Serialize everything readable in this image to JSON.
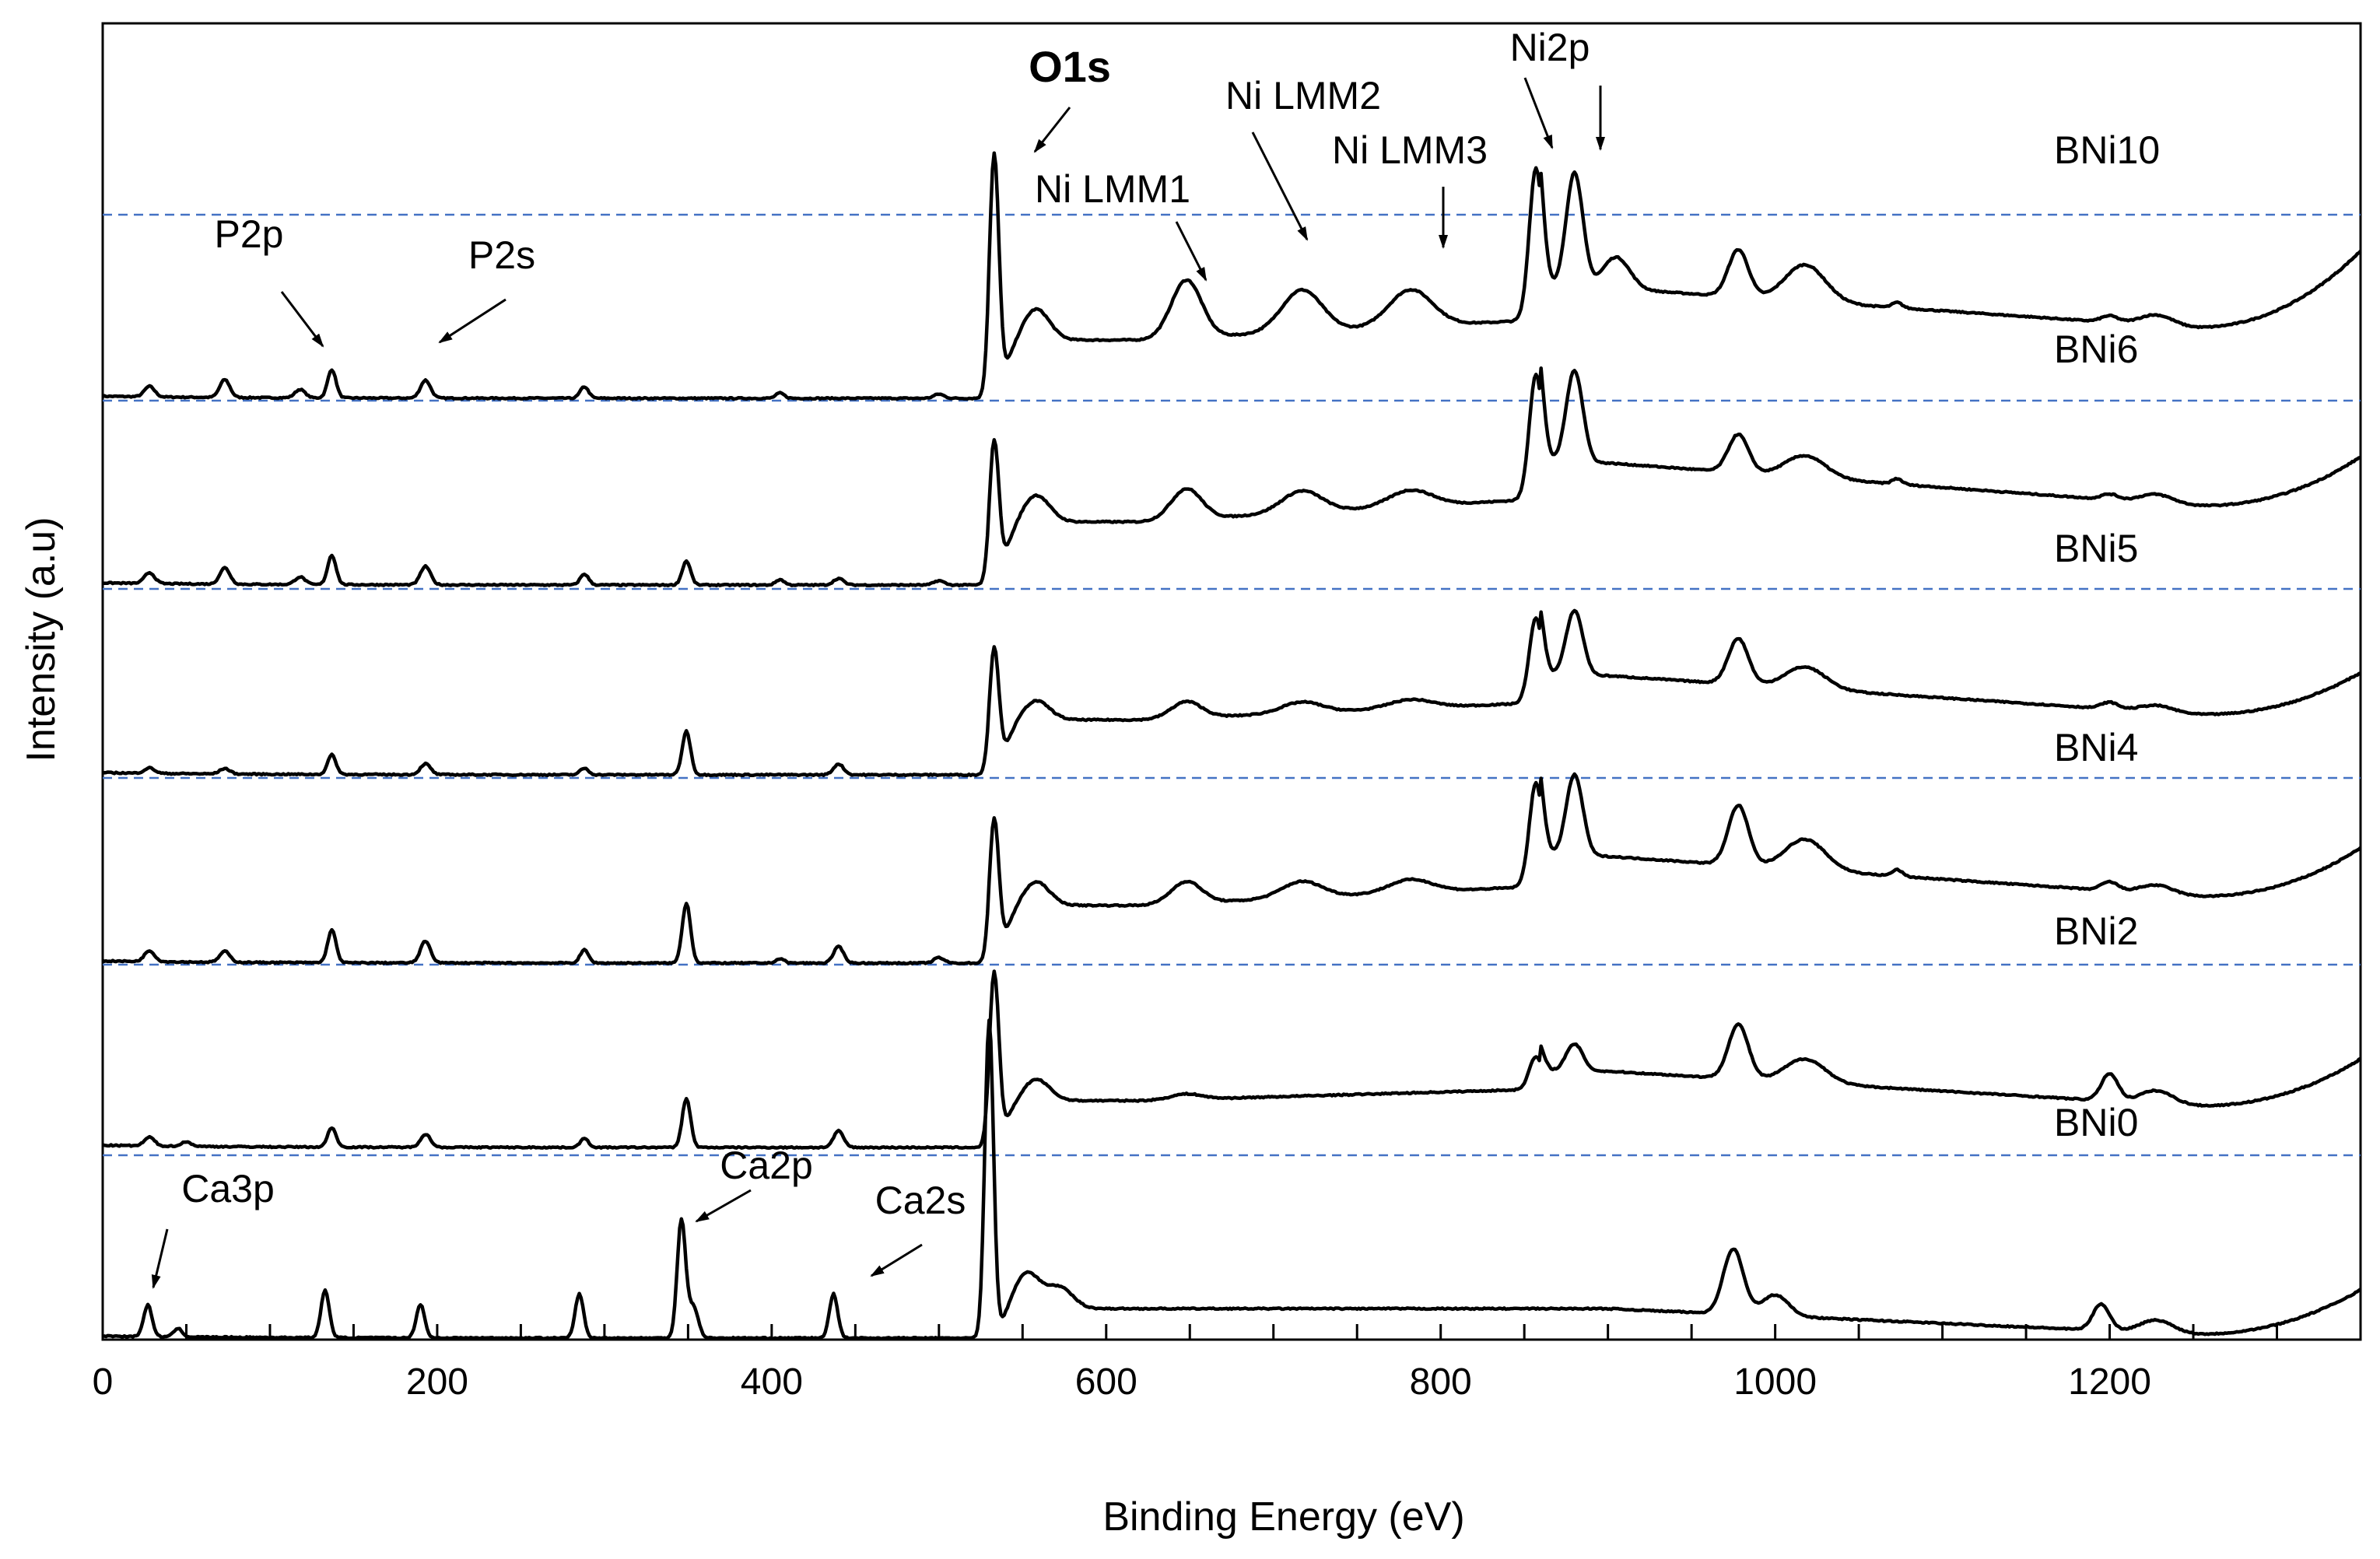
{
  "chart_data": {
    "type": "line",
    "title": "",
    "xlabel": "Binding Energy (eV)",
    "ylabel": "Intensity (a.u)",
    "xlim": [
      0,
      1350
    ],
    "x_ticks": [
      0,
      200,
      400,
      600,
      800,
      1000,
      1200
    ],
    "x_tick_labels": [
      "0",
      "200",
      "400",
      "600",
      "800",
      "1000",
      "1200"
    ],
    "x_minor_step": 50,
    "grid": false,
    "legend": "none",
    "colors": {
      "spectrum": "#000000",
      "baseline": "#4472c4"
    },
    "series": [
      {
        "name": "BNi10",
        "label": "BNi10",
        "baseline": 0.0,
        "start": 0.0,
        "end": 1.53,
        "ni_level": 0.55,
        "peaks": [
          {
            "x": 28,
            "h": 0.1,
            "w": 3
          },
          {
            "x": 73,
            "h": 0.17,
            "w": 3
          },
          {
            "x": 118,
            "h": 0.08,
            "w": 3
          },
          {
            "x": 137,
            "h": 0.27,
            "w": 2.5
          },
          {
            "x": 193,
            "h": 0.17,
            "w": 3
          },
          {
            "x": 288,
            "h": 0.11,
            "w": 2.5
          },
          {
            "x": 405,
            "h": 0.05,
            "w": 2.5
          },
          {
            "x": 500,
            "h": 0.04,
            "w": 3
          },
          {
            "x": 533,
            "h": 2.25,
            "w": 2.8
          },
          {
            "x": 558,
            "h": 0.3,
            "w": 8
          },
          {
            "x": 648,
            "h": 0.55,
            "w": 9
          },
          {
            "x": 717,
            "h": 0.4,
            "w": 12
          },
          {
            "x": 782,
            "h": 0.35,
            "w": 13
          },
          {
            "x": 857,
            "h": 1.45,
            "w": 4
          },
          {
            "x": 880,
            "h": 1.1,
            "w": 5
          },
          {
            "x": 905,
            "h": 0.3,
            "w": 8
          },
          {
            "x": 978,
            "h": 0.45,
            "w": 6
          },
          {
            "x": 1018,
            "h": 0.35,
            "w": 12
          },
          {
            "x": 1073,
            "h": 0.05,
            "w": 3
          },
          {
            "x": 1200,
            "h": 0.06,
            "w": 5
          },
          {
            "x": 1228,
            "h": 0.1,
            "w": 10
          }
        ]
      },
      {
        "name": "BNi6",
        "label": "BNi6",
        "baseline": 0.0,
        "start": 0.0,
        "end": 1.02,
        "ni_level": 0.6,
        "peaks": [
          {
            "x": 28,
            "h": 0.1,
            "w": 3
          },
          {
            "x": 73,
            "h": 0.15,
            "w": 3
          },
          {
            "x": 118,
            "h": 0.07,
            "w": 3
          },
          {
            "x": 137,
            "h": 0.27,
            "w": 2.5
          },
          {
            "x": 193,
            "h": 0.17,
            "w": 3
          },
          {
            "x": 288,
            "h": 0.1,
            "w": 2.5
          },
          {
            "x": 349,
            "h": 0.22,
            "w": 2.5
          },
          {
            "x": 405,
            "h": 0.05,
            "w": 2.5
          },
          {
            "x": 440,
            "h": 0.06,
            "w": 3
          },
          {
            "x": 500,
            "h": 0.04,
            "w": 3
          },
          {
            "x": 533,
            "h": 1.25,
            "w": 2.8
          },
          {
            "x": 558,
            "h": 0.25,
            "w": 8
          },
          {
            "x": 648,
            "h": 0.28,
            "w": 9
          },
          {
            "x": 717,
            "h": 0.2,
            "w": 12
          },
          {
            "x": 782,
            "h": 0.15,
            "w": 13
          },
          {
            "x": 857,
            "h": 1.15,
            "w": 4
          },
          {
            "x": 880,
            "h": 0.85,
            "w": 5
          },
          {
            "x": 978,
            "h": 0.35,
            "w": 6
          },
          {
            "x": 1018,
            "h": 0.2,
            "w": 12
          },
          {
            "x": 1073,
            "h": 0.05,
            "w": 3
          },
          {
            "x": 1200,
            "h": 0.05,
            "w": 5
          },
          {
            "x": 1228,
            "h": 0.08,
            "w": 10
          }
        ]
      },
      {
        "name": "BNi5",
        "label": "BNi5",
        "baseline": 0.0,
        "start": 0.0,
        "end": 0.88,
        "ni_level": 0.45,
        "peaks": [
          {
            "x": 28,
            "h": 0.05,
            "w": 3
          },
          {
            "x": 73,
            "h": 0.05,
            "w": 3
          },
          {
            "x": 137,
            "h": 0.18,
            "w": 2.5
          },
          {
            "x": 193,
            "h": 0.1,
            "w": 3
          },
          {
            "x": 288,
            "h": 0.06,
            "w": 2.5
          },
          {
            "x": 349,
            "h": 0.4,
            "w": 2.5
          },
          {
            "x": 440,
            "h": 0.1,
            "w": 3
          },
          {
            "x": 533,
            "h": 1.1,
            "w": 2.8
          },
          {
            "x": 558,
            "h": 0.18,
            "w": 8
          },
          {
            "x": 648,
            "h": 0.15,
            "w": 9
          },
          {
            "x": 717,
            "h": 0.1,
            "w": 12
          },
          {
            "x": 782,
            "h": 0.08,
            "w": 13
          },
          {
            "x": 857,
            "h": 0.78,
            "w": 4
          },
          {
            "x": 880,
            "h": 0.6,
            "w": 5
          },
          {
            "x": 978,
            "h": 0.42,
            "w": 6
          },
          {
            "x": 1018,
            "h": 0.2,
            "w": 12
          },
          {
            "x": 1200,
            "h": 0.06,
            "w": 5
          },
          {
            "x": 1228,
            "h": 0.06,
            "w": 10
          }
        ]
      },
      {
        "name": "BNi4",
        "label": "BNi4",
        "baseline": 0.0,
        "start": 0.0,
        "end": 1.0,
        "ni_level": 0.5,
        "peaks": [
          {
            "x": 28,
            "h": 0.1,
            "w": 3
          },
          {
            "x": 73,
            "h": 0.1,
            "w": 3
          },
          {
            "x": 137,
            "h": 0.3,
            "w": 2.5
          },
          {
            "x": 193,
            "h": 0.2,
            "w": 3
          },
          {
            "x": 288,
            "h": 0.12,
            "w": 2.5
          },
          {
            "x": 349,
            "h": 0.55,
            "w": 2.5
          },
          {
            "x": 405,
            "h": 0.04,
            "w": 2.5
          },
          {
            "x": 440,
            "h": 0.15,
            "w": 3
          },
          {
            "x": 500,
            "h": 0.05,
            "w": 3
          },
          {
            "x": 533,
            "h": 1.25,
            "w": 2.8
          },
          {
            "x": 558,
            "h": 0.22,
            "w": 8
          },
          {
            "x": 648,
            "h": 0.2,
            "w": 9
          },
          {
            "x": 717,
            "h": 0.15,
            "w": 12
          },
          {
            "x": 782,
            "h": 0.12,
            "w": 13
          },
          {
            "x": 857,
            "h": 0.95,
            "w": 4
          },
          {
            "x": 880,
            "h": 0.75,
            "w": 5
          },
          {
            "x": 978,
            "h": 0.55,
            "w": 6
          },
          {
            "x": 1018,
            "h": 0.28,
            "w": 12
          },
          {
            "x": 1073,
            "h": 0.06,
            "w": 3
          },
          {
            "x": 1200,
            "h": 0.08,
            "w": 5
          },
          {
            "x": 1228,
            "h": 0.08,
            "w": 10
          }
        ]
      },
      {
        "name": "BNi2",
        "label": "BNi2",
        "baseline": 0.0,
        "start": 0.0,
        "end": 0.95,
        "ni_level": 0.3,
        "peaks": [
          {
            "x": 28,
            "h": 0.08,
            "w": 3
          },
          {
            "x": 50,
            "h": 0.04,
            "w": 3
          },
          {
            "x": 137,
            "h": 0.18,
            "w": 2.5
          },
          {
            "x": 193,
            "h": 0.12,
            "w": 3
          },
          {
            "x": 288,
            "h": 0.08,
            "w": 2.5
          },
          {
            "x": 349,
            "h": 0.45,
            "w": 2.5
          },
          {
            "x": 440,
            "h": 0.15,
            "w": 3
          },
          {
            "x": 533,
            "h": 1.55,
            "w": 2.8
          },
          {
            "x": 558,
            "h": 0.2,
            "w": 8
          },
          {
            "x": 648,
            "h": 0.05,
            "w": 9
          },
          {
            "x": 857,
            "h": 0.3,
            "w": 4
          },
          {
            "x": 880,
            "h": 0.25,
            "w": 5
          },
          {
            "x": 978,
            "h": 0.5,
            "w": 6
          },
          {
            "x": 1018,
            "h": 0.22,
            "w": 12
          },
          {
            "x": 1200,
            "h": 0.25,
            "w": 5
          },
          {
            "x": 1228,
            "h": 0.12,
            "w": 10
          }
        ]
      },
      {
        "name": "BNi0",
        "label": "BNi0",
        "baseline": 0.0,
        "start": 0.0,
        "end": 0.9,
        "ni_level": 0.0,
        "peaks": [
          {
            "x": 27,
            "h": 0.3,
            "w": 2.5
          },
          {
            "x": 45,
            "h": 0.08,
            "w": 2.5
          },
          {
            "x": 133,
            "h": 0.45,
            "w": 2.5
          },
          {
            "x": 190,
            "h": 0.32,
            "w": 2.5
          },
          {
            "x": 285,
            "h": 0.42,
            "w": 2.5
          },
          {
            "x": 346,
            "h": 1.12,
            "w": 2.5
          },
          {
            "x": 353,
            "h": 0.3,
            "w": 3
          },
          {
            "x": 437,
            "h": 0.42,
            "w": 2.5
          },
          {
            "x": 530,
            "h": 3.0,
            "w": 2.6
          },
          {
            "x": 552,
            "h": 0.35,
            "w": 8
          },
          {
            "x": 572,
            "h": 0.2,
            "w": 8
          },
          {
            "x": 975,
            "h": 0.62,
            "w": 6
          },
          {
            "x": 1000,
            "h": 0.2,
            "w": 8
          },
          {
            "x": 1195,
            "h": 0.25,
            "w": 5
          },
          {
            "x": 1228,
            "h": 0.12,
            "w": 10
          }
        ]
      }
    ],
    "annotations": [
      {
        "text": "O1s",
        "target": 535
      },
      {
        "text": "Ni LMM1",
        "target": 650
      },
      {
        "text": "Ni LMM2",
        "target": 717
      },
      {
        "text": "Ni LMM3",
        "target": 800
      },
      {
        "text": "Ni2p",
        "target": 858
      },
      {
        "text": "P2p",
        "target": 130
      },
      {
        "text": "P2s",
        "target": 200
      },
      {
        "text": "Ca3p",
        "target": 30
      },
      {
        "text": "Ca2p",
        "target": 355
      },
      {
        "text": "Ca2s",
        "target": 455
      }
    ]
  }
}
